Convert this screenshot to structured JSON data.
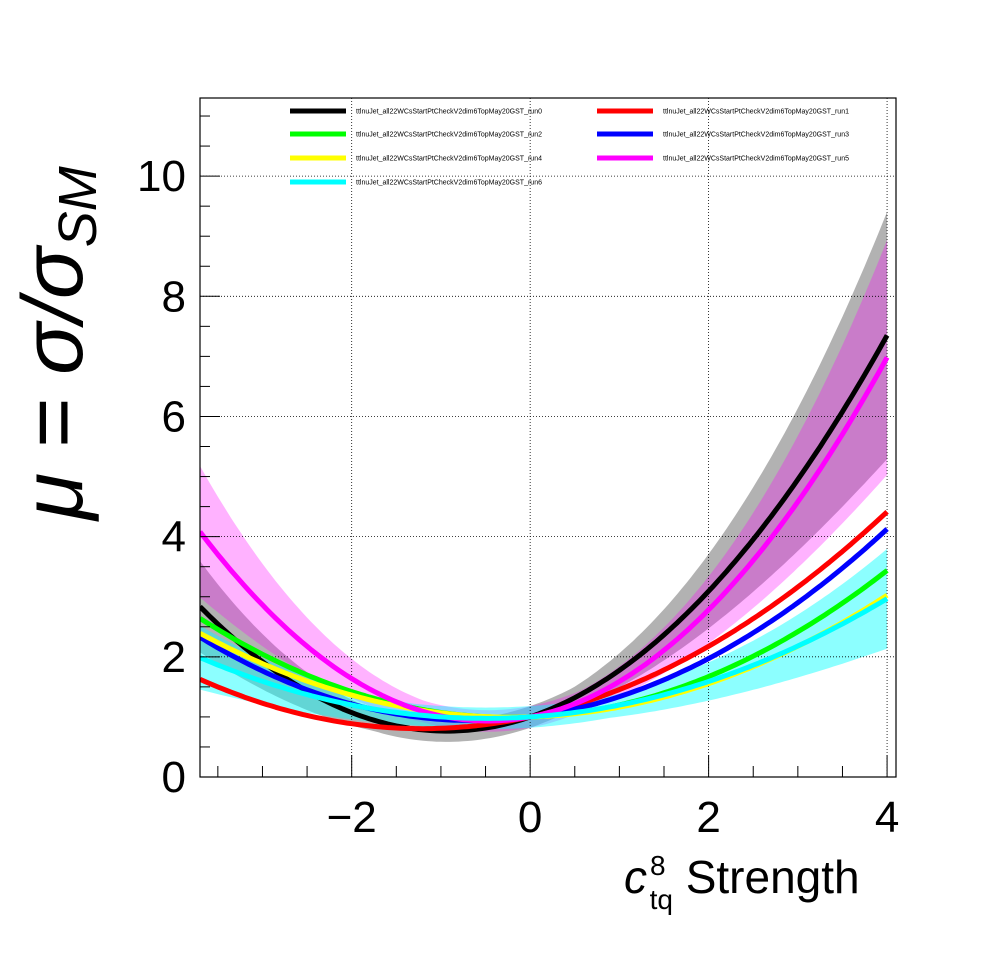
{
  "chart_data": {
    "type": "line",
    "title": "",
    "xlabel": {
      "base": "c",
      "superscript": "8",
      "subscript": "tq",
      "suffix": " Strength"
    },
    "ylabel": {
      "prefix": "μ = σ/σ",
      "subscript": "SM"
    },
    "xlim": [
      -3.7,
      4.1
    ],
    "ylim": [
      0,
      11.3
    ],
    "xticks": [
      -2,
      0,
      2,
      4
    ],
    "xtick_labels": [
      "−2",
      "0",
      "2",
      "4"
    ],
    "yticks": [
      0,
      2,
      4,
      6,
      8,
      10
    ],
    "ytick_labels": [
      "0",
      "2",
      "4",
      "6",
      "8",
      "10"
    ],
    "grid": true,
    "legend_position": "top",
    "series": [
      {
        "name": "ttlnuJet_all22WCsStartPtCheckV2dim6TopMay20GST_run0",
        "color": "#000000",
        "quad": [
          0.2705,
          0.5051,
          1.0
        ],
        "band": [
          0.5,
          0.16,
          0.12
        ],
        "band_opacity": 0.3
      },
      {
        "name": "ttlnuJet_all22WCsStartPtCheckV2dim6TopMay20GST_run1",
        "color": "#ff0000",
        "quad": [
          0.1328,
          0.3222,
          1.0
        ]
      },
      {
        "name": "ttlnuJet_all22WCsStartPtCheckV2dim6TopMay20GST_run2",
        "color": "#00ff00",
        "quad": [
          0.1367,
          0.0625,
          1.0
        ]
      },
      {
        "name": "ttlnuJet_all22WCsStartPtCheckV2dim6TopMay20GST_run3",
        "color": "#0000ff",
        "quad": [
          0.1481,
          0.1895,
          1.0
        ]
      },
      {
        "name": "ttlnuJet_all22WCsStartPtCheckV2dim6TopMay20GST_run4",
        "color": "#ffff00",
        "quad": [
          0.1146,
          0.0479,
          1.0
        ]
      },
      {
        "name": "ttlnuJet_all22WCsStartPtCheckV2dim6TopMay20GST_run5",
        "color": "#ff00ff",
        "quad": [
          0.3024,
          0.2861,
          1.0
        ],
        "band": [
          0.5,
          0.16,
          0.12
        ],
        "band_opacity": 0.3
      },
      {
        "name": "ttlnuJet_all22WCsStartPtCheckV2dim6TopMay20GST_run6",
        "color": "#00ffff",
        "quad": [
          0.0985,
          0.0977,
          1.0
        ],
        "band": [
          0.5,
          0.16,
          0.12
        ],
        "band_opacity": 0.45
      }
    ]
  }
}
